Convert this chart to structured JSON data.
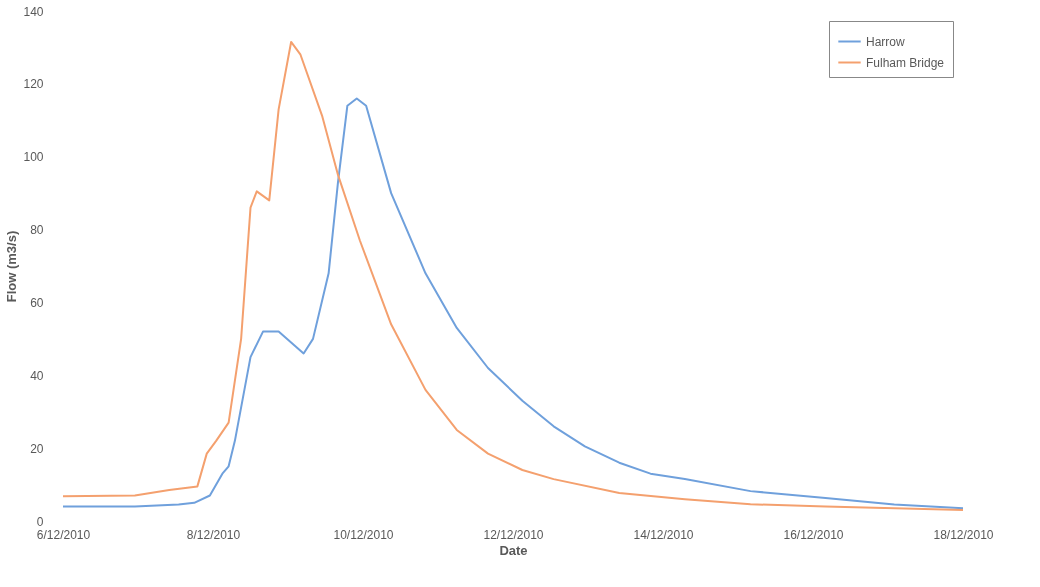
{
  "chart_data": {
    "type": "line",
    "xlabel": "Date",
    "ylabel": "Flow (m3/s)",
    "xlim": [
      "2010-12-06T00:00",
      "2010-12-18T00:00"
    ],
    "xticks": [
      {
        "value": "2010-12-06T00:00",
        "label": "6/12/2010"
      },
      {
        "value": "2010-12-08T00:00",
        "label": "8/12/2010"
      },
      {
        "value": "2010-12-10T00:00",
        "label": "10/12/2010"
      },
      {
        "value": "2010-12-12T00:00",
        "label": "12/12/2010"
      },
      {
        "value": "2010-12-14T00:00",
        "label": "14/12/2010"
      },
      {
        "value": "2010-12-16T00:00",
        "label": "16/12/2010"
      },
      {
        "value": "2010-12-18T00:00",
        "label": "18/12/2010"
      }
    ],
    "ylim": [
      0,
      140
    ],
    "yticks": [
      0,
      20,
      40,
      60,
      80,
      100,
      120,
      140
    ],
    "grid": false,
    "legend": "top right",
    "line_style": "solid",
    "marker": "none",
    "series": [
      {
        "name": "Harrow",
        "color": "#6fa0dc",
        "x": [
          "2010-12-06T00:00",
          "2010-12-06T23:00",
          "2010-12-07T13:00",
          "2010-12-07T18:00",
          "2010-12-07T23:00",
          "2010-12-08T03:00",
          "2010-12-08T05:00",
          "2010-12-08T07:00",
          "2010-12-08T12:00",
          "2010-12-08T16:00",
          "2010-12-08T21:00",
          "2010-12-09T05:00",
          "2010-12-09T08:00",
          "2010-12-09T13:00",
          "2010-12-09T16:00",
          "2010-12-09T19:00",
          "2010-12-09T22:00",
          "2010-12-10T01:00",
          "2010-12-10T09:00",
          "2010-12-10T20:00",
          "2010-12-11T06:00",
          "2010-12-11T16:00",
          "2010-12-12T03:00",
          "2010-12-12T13:00",
          "2010-12-12T23:00",
          "2010-12-13T10:00",
          "2010-12-13T20:00",
          "2010-12-14T07:00",
          "2010-12-15T04:00",
          "2010-12-16T04:00",
          "2010-12-17T02:00",
          "2010-12-18T00:00"
        ],
        "values": [
          4,
          4,
          4.5,
          5,
          7,
          13,
          15,
          22,
          45,
          52,
          52,
          46,
          50,
          68,
          93,
          114,
          116,
          114,
          90,
          68,
          53,
          42,
          33,
          26,
          20.5,
          16,
          13,
          11.5,
          8.2,
          6.3,
          4.5,
          3.5
        ]
      },
      {
        "name": "Fulham Bridge",
        "color": "#f4a06e",
        "x": [
          "2010-12-06T00:00",
          "2010-12-06T23:00",
          "2010-12-07T10:00",
          "2010-12-07T19:00",
          "2010-12-07T22:00",
          "2010-12-08T01:00",
          "2010-12-08T05:00",
          "2010-12-08T09:00",
          "2010-12-08T12:00",
          "2010-12-08T14:00",
          "2010-12-08T18:00",
          "2010-12-08T21:00",
          "2010-12-09T01:00",
          "2010-12-09T04:00",
          "2010-12-09T11:00",
          "2010-12-09T16:00",
          "2010-12-09T23:00",
          "2010-12-10T09:00",
          "2010-12-10T20:00",
          "2010-12-11T06:00",
          "2010-12-11T16:00",
          "2010-12-12T03:00",
          "2010-12-12T13:00",
          "2010-12-13T10:00",
          "2010-12-14T07:00",
          "2010-12-15T04:00",
          "2010-12-16T04:00",
          "2010-12-18T00:00"
        ],
        "values": [
          6.8,
          7,
          8.5,
          9.5,
          18.5,
          22,
          27,
          50,
          86,
          90.5,
          88,
          113,
          131.5,
          128,
          111,
          95,
          77,
          54,
          36,
          25,
          18.5,
          14,
          11.5,
          7.7,
          6,
          4.6,
          4,
          3
        ]
      }
    ]
  }
}
